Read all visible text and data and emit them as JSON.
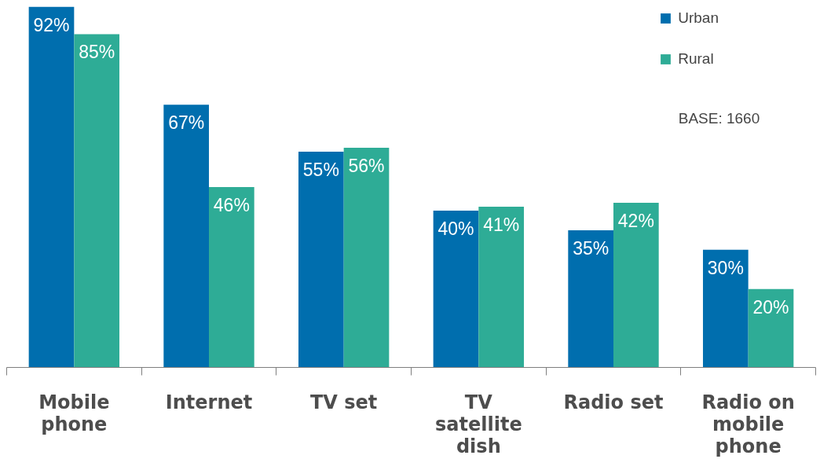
{
  "chart_data": {
    "type": "bar",
    "categories": [
      "Mobile phone",
      "Internet",
      "TV set",
      "TV satellite dish",
      "Radio set",
      "Radio on mobile phone"
    ],
    "series": [
      {
        "name": "Urban",
        "color": "#006eae",
        "values": [
          92,
          67,
          55,
          40,
          35,
          30
        ],
        "value_labels": [
          "92%",
          "67%",
          "55%",
          "40%",
          "35%",
          "30%"
        ]
      },
      {
        "name": "Rural",
        "color": "#2eac96",
        "values": [
          85,
          46,
          56,
          41,
          42,
          20
        ],
        "value_labels": [
          "85%",
          "46%",
          "56%",
          "41%",
          "42%",
          "20%"
        ]
      }
    ],
    "legend": "top right",
    "grid": false,
    "tick_labels": "x",
    "annotations": [
      "BASE: 1660"
    ]
  }
}
